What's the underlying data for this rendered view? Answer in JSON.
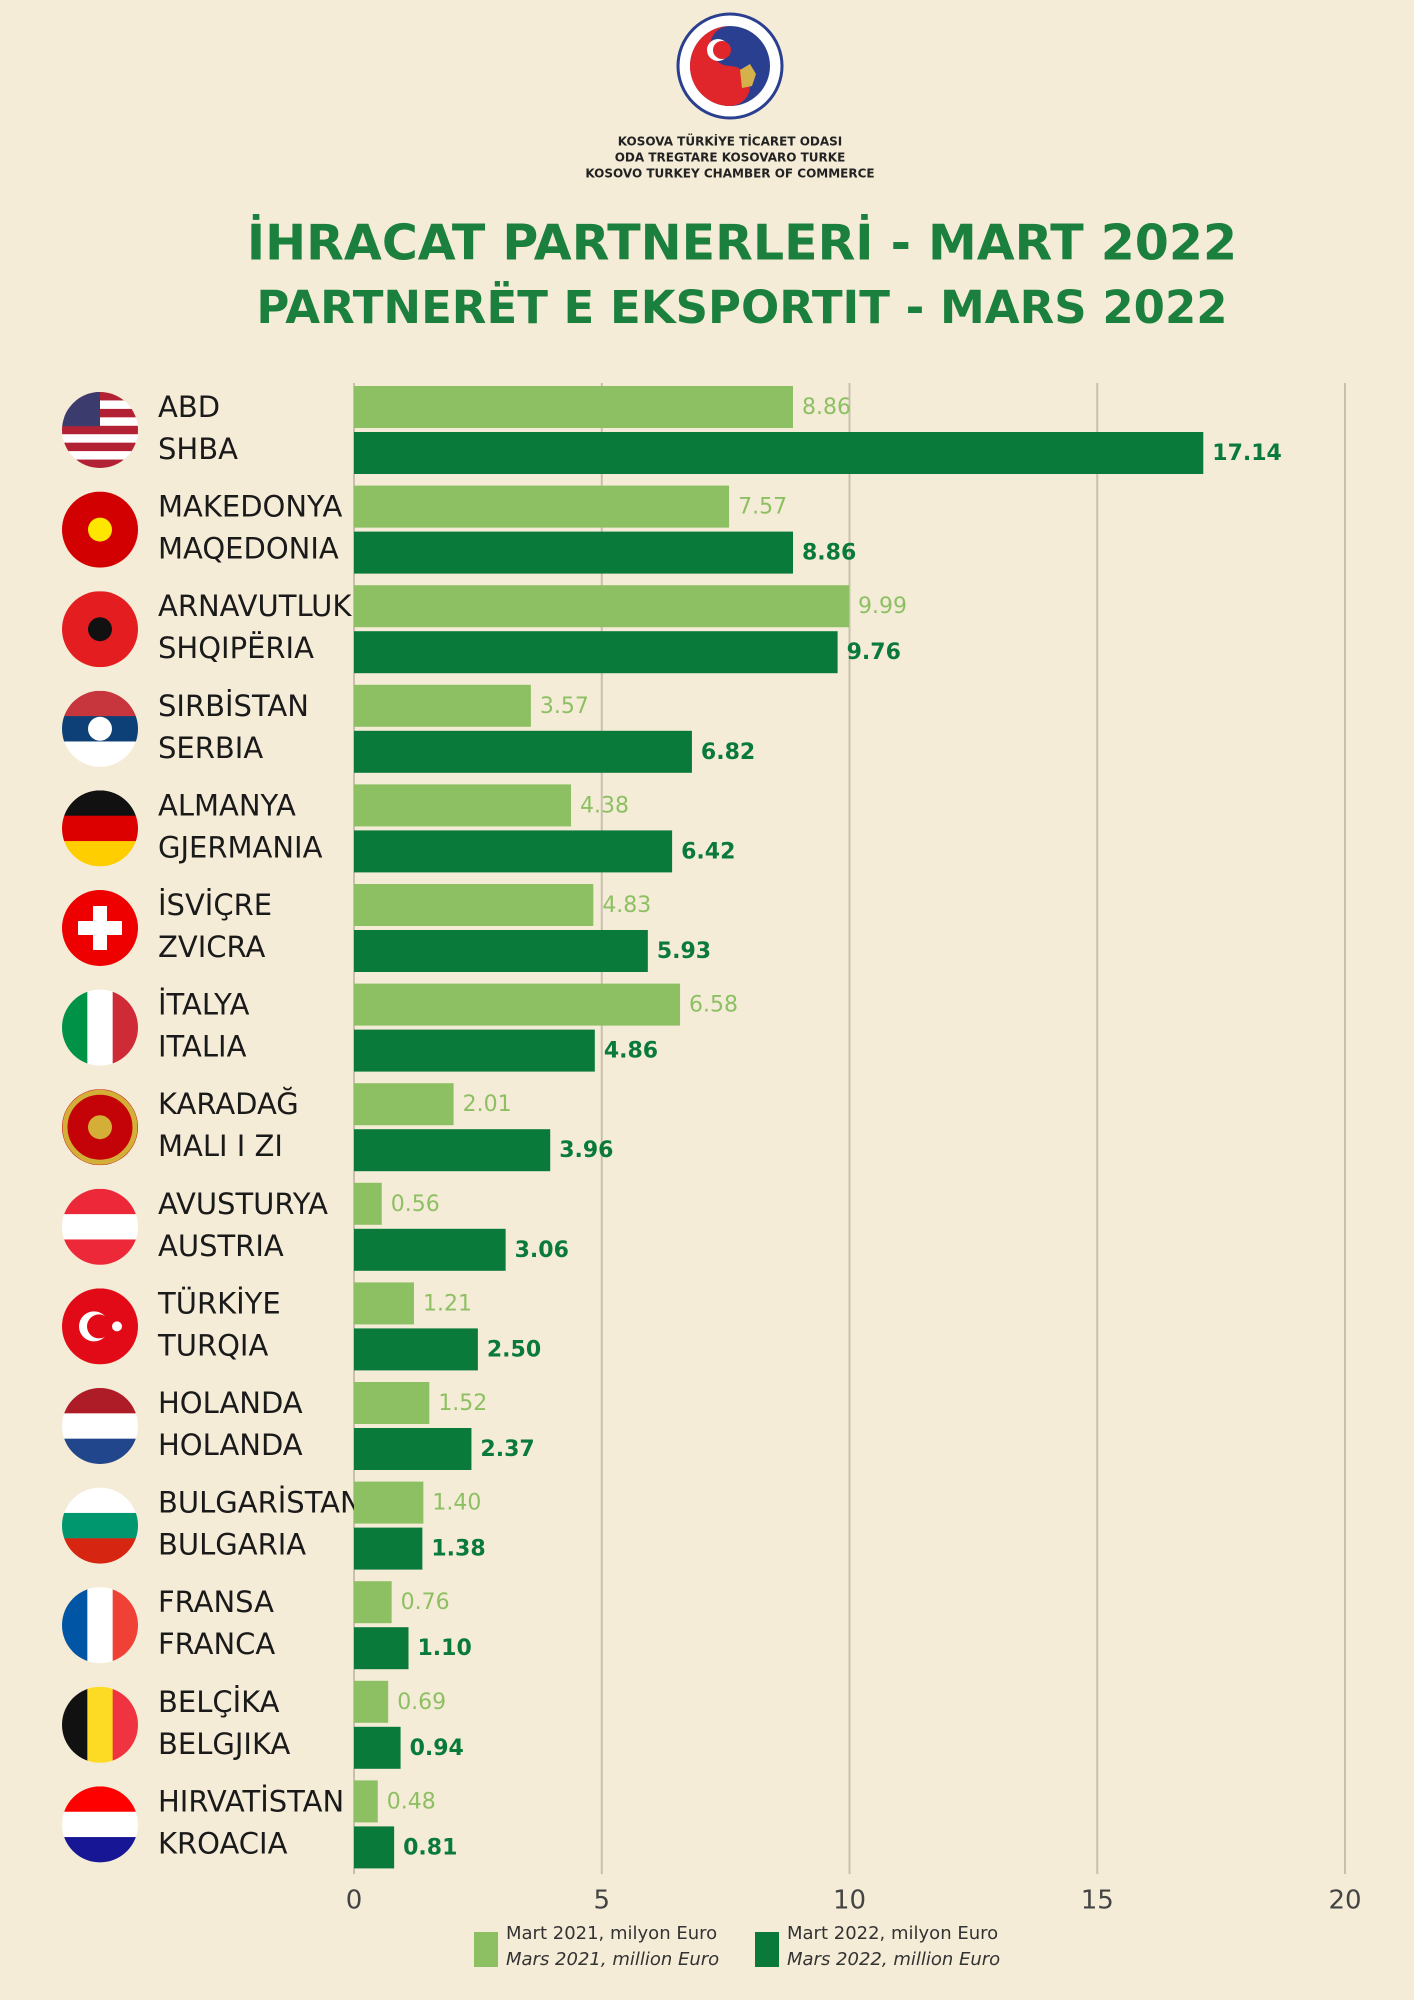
{
  "header": {
    "org_lines": [
      "KOSOVA TÜRKİYE TİCARET ODASI",
      "ODA TREGTARE KOSOVARO TURKE",
      "KOSOVO TURKEY CHAMBER OF COMMERCE"
    ]
  },
  "chart_data": {
    "type": "bar",
    "orientation": "horizontal",
    "title": [
      "İHRACAT PARTNERLERİ - MART 2022",
      "PARTNERËT E EKSPORTIT - MARS 2022"
    ],
    "categories": [
      [
        "ABD",
        "SHBA"
      ],
      [
        "MAKEDONYA",
        "MAQEDONIA"
      ],
      [
        "ARNAVUTLUK",
        "SHQIPËRIA"
      ],
      [
        "SIRBİSTAN",
        "SERBIA"
      ],
      [
        "ALMANYA",
        "GJERMANIA"
      ],
      [
        "İSVİÇRE",
        "ZVICRA"
      ],
      [
        "İTALYA",
        "ITALIA"
      ],
      [
        "KARADAĞ",
        "MALI I ZI"
      ],
      [
        "AVUSTURYA",
        "AUSTRIA"
      ],
      [
        "TÜRKİYE",
        "TURQIA"
      ],
      [
        "HOLANDA",
        "HOLANDA"
      ],
      [
        "BULGARİSTAN",
        "BULGARIA"
      ],
      [
        "FRANSA",
        "FRANCA"
      ],
      [
        "BELÇİKA",
        "BELGJIKA"
      ],
      [
        "HIRVATİSTAN",
        "KROACIA"
      ]
    ],
    "series": [
      {
        "name": "Mart 2021, milyon Euro",
        "name_alt": "Mars 2021, million Euro",
        "color": "#8dc063",
        "values": [
          8.86,
          7.57,
          9.99,
          3.57,
          4.38,
          4.83,
          6.58,
          2.01,
          0.56,
          1.21,
          1.52,
          1.4,
          0.76,
          0.69,
          0.48
        ],
        "value_labels": [
          "8.86",
          "7.57",
          "9.99",
          "3.57",
          "4.38",
          "4.83",
          "6.58",
          "2.01",
          "0.56",
          "1.21",
          "1.52",
          "1.40",
          "0.76",
          "0.69",
          "0.48"
        ]
      },
      {
        "name": "Mart 2022, milyon Euro",
        "name_alt": "Mars 2022, million Euro",
        "color": "#0a7a3a",
        "values": [
          17.14,
          8.86,
          9.76,
          6.82,
          6.42,
          5.93,
          4.86,
          3.96,
          3.06,
          2.5,
          2.37,
          1.38,
          1.1,
          0.94,
          0.81
        ],
        "value_labels": [
          "17.14",
          "8.86",
          "9.76",
          "6.82",
          "6.42",
          "5.93",
          "4.86",
          "3.96",
          "3.06",
          "2.50",
          "2.37",
          "1.38",
          "1.10",
          "0.94",
          "0.81"
        ]
      }
    ],
    "xlim": [
      0,
      20
    ],
    "xticks": [
      0,
      5,
      10,
      15,
      20
    ],
    "grid": true
  }
}
